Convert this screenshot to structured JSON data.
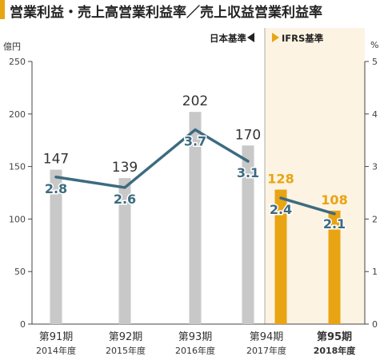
{
  "title": "営業利益・売上高営業利益率／売上収益営業利益率",
  "colors": {
    "accent": "#e8a413",
    "bar_jgaap": "#c8c8c8",
    "bar_ifrs": "#e8a413",
    "line": "#3c6b80",
    "ifrs_bg": "#fdf3e2",
    "label_dark": "#333333"
  },
  "segments": {
    "jgaap_label": "日本基準",
    "ifrs_label": "IFRS基準"
  },
  "chart_data": {
    "type": "bar",
    "categories": [
      "第91期",
      "第92期",
      "第93期",
      "第94期",
      "第95期"
    ],
    "subcategories": [
      "2014年度",
      "2015年度",
      "2016年度",
      "2017年度",
      "2018年度"
    ],
    "series": [
      {
        "axis": "left",
        "type": "bar",
        "values": [
          147,
          139,
          202,
          170,
          128
        ]
      },
      {
        "axis": "right",
        "type": "line",
        "values": [
          2.8,
          2.6,
          3.7,
          3.1,
          null
        ]
      },
      {
        "axis": "left",
        "type": "bar",
        "values": [
          null,
          null,
          null,
          null,
          108
        ]
      },
      {
        "axis": "right",
        "type": "line",
        "values": [
          null,
          null,
          null,
          2.4,
          2.1
        ]
      }
    ],
    "bar_labels": [
      "147",
      "139",
      "202",
      "170",
      "128",
      "108"
    ],
    "line_labels": [
      "2.8",
      "2.6",
      "3.7",
      "3.1",
      "2.4",
      "2.1"
    ],
    "left_unit": "億円",
    "right_unit": "%",
    "ylim_left": [
      0,
      250
    ],
    "ylim_right": [
      0,
      5
    ],
    "yticks_left": [
      "0",
      "50",
      "100",
      "150",
      "200",
      "250"
    ],
    "yticks_right": [
      "0",
      "1",
      "2",
      "3",
      "4",
      "5"
    ],
    "grid": false,
    "highlight_last_category": true
  }
}
